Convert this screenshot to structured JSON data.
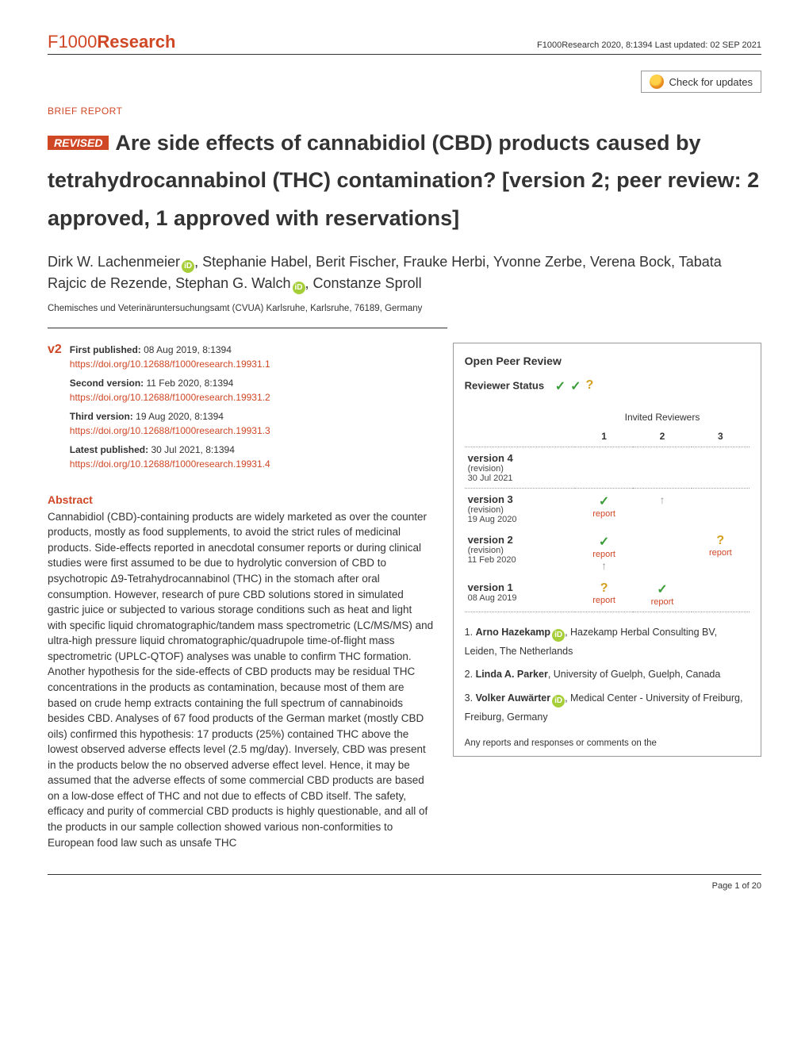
{
  "journal_logo": "F1000Research",
  "header_meta": "F1000Research 2020, 8:1394 Last updated: 02 SEP 2021",
  "check_updates": "Check for updates",
  "content_type": "BRIEF REPORT",
  "revised_badge": "REVISED",
  "title_main": "Are side effects of cannabidiol (CBD) products caused by tetrahydrocannabinol (THC) contamination?",
  "title_version": "[version 2; peer review: 2 approved, 1 approved with reservations]",
  "authors_parts": [
    {
      "text": "Dirk W. Lachenmeier",
      "orcid": true
    },
    {
      "text": ", Stephanie Habel, Berit Fischer, Frauke Herbi, Yvonne Zerbe, Verena Bock, Tabata Rajcic de Rezende, Stephan G. Walch",
      "orcid": false
    },
    {
      "text": "",
      "orcid": true
    },
    {
      "text": ", Constanze Sproll",
      "orcid": false
    }
  ],
  "affiliation": "Chemisches und Veterinäruntersuchungsamt (CVUA) Karlsruhe, Karlsruhe, 76189, Germany",
  "version_marker": "v2",
  "pub_history": [
    {
      "label": "First published:",
      "meta": "08 Aug 2019, 8:1394",
      "doi": "https://doi.org/10.12688/f1000research.19931.1"
    },
    {
      "label": "Second version:",
      "meta": "11 Feb 2020, 8:1394",
      "doi": "https://doi.org/10.12688/f1000research.19931.2"
    },
    {
      "label": "Third version:",
      "meta": "19 Aug 2020, 8:1394",
      "doi": "https://doi.org/10.12688/f1000research.19931.3"
    },
    {
      "label": "Latest published:",
      "meta": "30 Jul 2021, 8:1394",
      "doi": "https://doi.org/10.12688/f1000research.19931.4"
    }
  ],
  "abstract_heading": "Abstract",
  "abstract_text": "Cannabidiol (CBD)-containing products are widely marketed as over the counter products, mostly as food supplements, to avoid the strict rules of medicinal products. Side-effects reported in anecdotal consumer reports or during clinical studies were first assumed to be due to hydrolytic conversion of CBD to psychotropic Δ9-Tetrahydrocannabinol (THC) in the stomach after oral consumption. However, research of pure CBD solutions stored in simulated gastric juice or subjected to various storage conditions such as heat and light with specific liquid chromatographic/tandem mass spectrometric (LC/MS/MS) and ultra-high pressure liquid chromatographic/quadrupole time-of-flight mass spectrometric (UPLC-QTOF) analyses was unable to confirm THC formation. Another hypothesis for the side-effects of CBD products may be residual THC concentrations in the products as contamination, because most of them are based on crude hemp extracts containing the full spectrum of cannabinoids besides CBD. Analyses of 67 food products of the German market (mostly CBD oils) confirmed this hypothesis: 17 products (25%) contained THC above the lowest observed adverse effects level (2.5 mg/day). Inversely, CBD was present in the products below the no observed adverse effect level. Hence, it may be assumed that the adverse effects of some commercial CBD products are based on a low-dose effect of THC and not due to effects of CBD itself. The safety, efficacy and purity of commercial CBD products is highly questionable, and all of the products in our sample collection showed various non-conformities to European food law such as unsafe THC",
  "review": {
    "box_title": "Open Peer Review",
    "status_label": "Reviewer Status",
    "status_icons": [
      "check",
      "check",
      "question"
    ],
    "invited_header": "Invited Reviewers",
    "columns": [
      "1",
      "2",
      "3"
    ],
    "rows": [
      {
        "version": "version 4",
        "sub": "(revision)",
        "date": "30 Jul 2021",
        "c1": "",
        "c2": "",
        "c3": ""
      },
      {
        "version": "version 3",
        "sub": "(revision)",
        "date": "19 Aug 2020",
        "c1": "check-report",
        "c2": "arrow",
        "c3": ""
      },
      {
        "version": "version 2",
        "sub": "(revision)",
        "date": "11 Feb 2020",
        "c1": "check-report-arrow",
        "c2": "",
        "c3": "question-report"
      },
      {
        "version": "version 1",
        "sub": "",
        "date": "08 Aug 2019",
        "c1": "question-report",
        "c2": "check-report",
        "c3": ""
      }
    ],
    "report_label": "report",
    "reviewers": [
      {
        "n": "1.",
        "name": "Arno Hazekamp",
        "orcid": true,
        "aff": ", Hazekamp Herbal Consulting BV, Leiden, The Netherlands"
      },
      {
        "n": "2.",
        "name": "Linda A. Parker",
        "orcid": false,
        "aff": ", University of Guelph, Guelph, Canada"
      },
      {
        "n": "3.",
        "name": "Volker Auwärter",
        "orcid": true,
        "aff": ", Medical Center - University of Freiburg, Freiburg, Germany"
      }
    ],
    "footer_note": "Any reports and responses or comments on the"
  },
  "page_footer": "Page 1 of 20"
}
